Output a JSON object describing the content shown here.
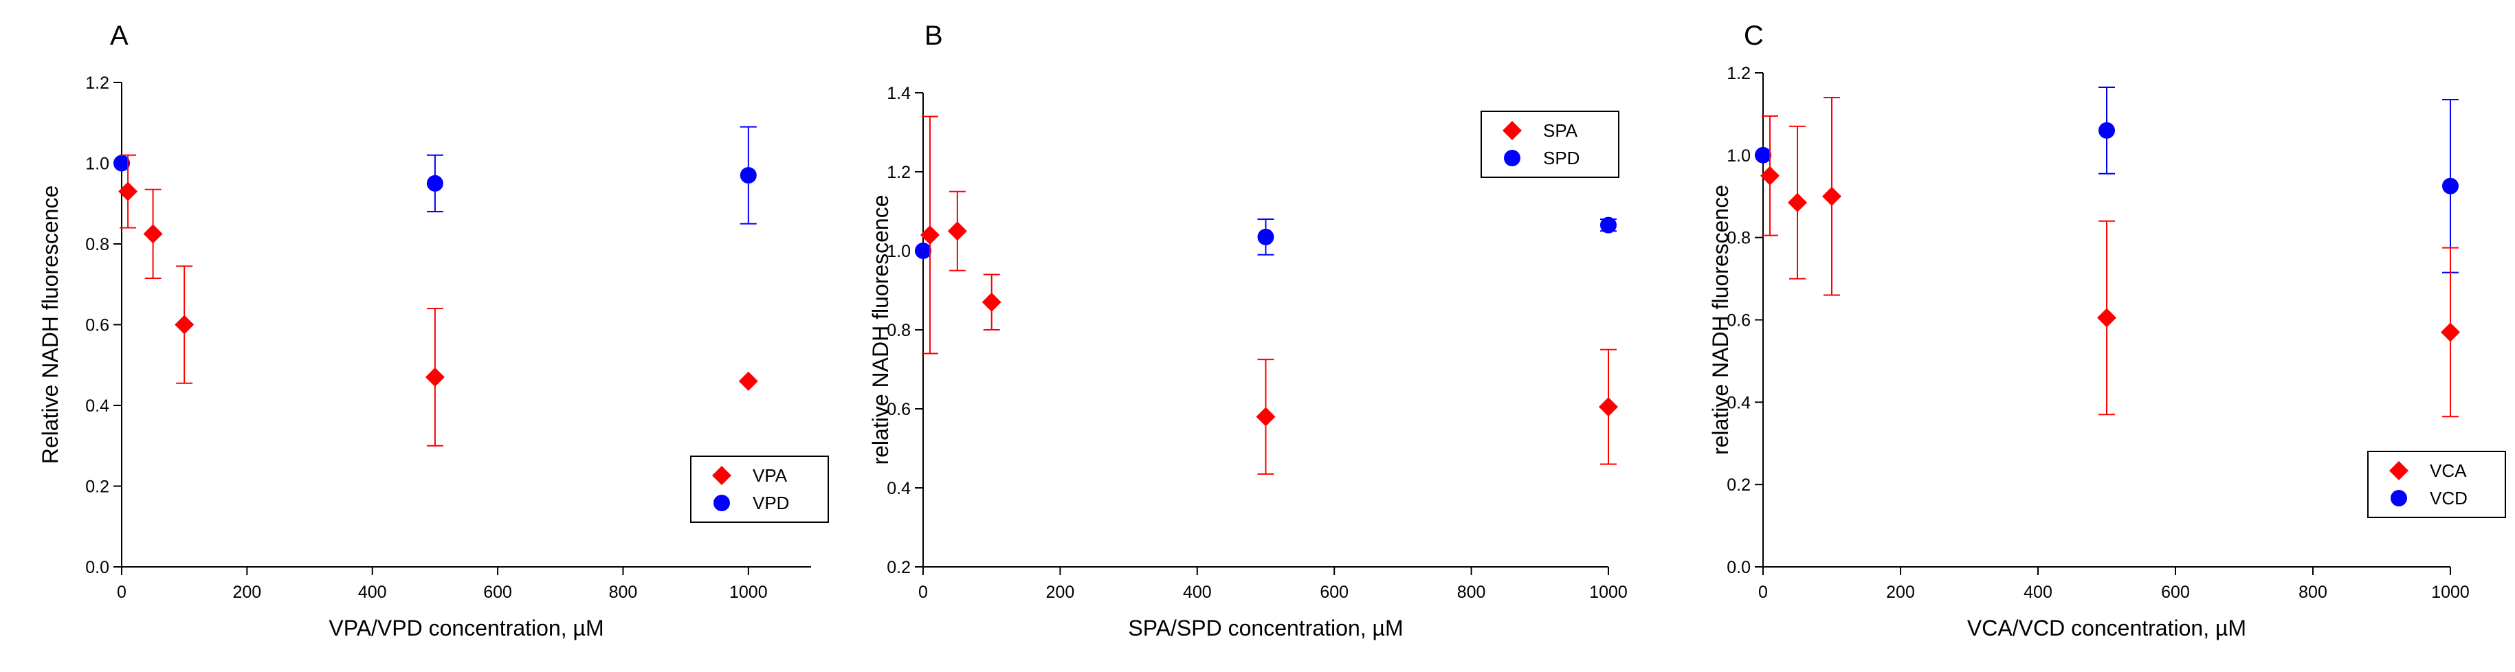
{
  "colors": {
    "red_series": "#ff0000",
    "blue_series": "#0000ff",
    "axis": "#000000"
  },
  "chart_data": [
    {
      "type": "scatter",
      "panel": "A",
      "xlabel": "VPA/VPD concentration, µM",
      "ylabel": "Relative NADH fluorescence",
      "xlim": [
        0,
        1100
      ],
      "ylim": [
        0.0,
        1.2
      ],
      "xticks": [
        0,
        200,
        400,
        600,
        800,
        1000
      ],
      "xtick_labels": [
        "0",
        "200",
        "400",
        "600",
        "800",
        "1000"
      ],
      "yticks": [
        0.0,
        0.2,
        0.4,
        0.6,
        0.8,
        1.0,
        1.2
      ],
      "ytick_labels": [
        "0.0",
        "0.2",
        "0.4",
        "0.6",
        "0.8",
        "1.0",
        "1.2"
      ],
      "legend_position": "bottom-right",
      "series": [
        {
          "name": "VPA",
          "marker": "diamond",
          "color": "#ff0000",
          "x": [
            10,
            50,
            100,
            500,
            1000
          ],
          "y": [
            0.93,
            0.825,
            0.6,
            0.47,
            0.46
          ],
          "err": [
            0.09,
            0.11,
            0.145,
            0.17,
            0.0
          ]
        },
        {
          "name": "VPD",
          "marker": "circle",
          "color": "#0000ff",
          "x": [
            0,
            500,
            1000
          ],
          "y": [
            1.0,
            0.95,
            0.97
          ],
          "err": [
            0.0,
            0.07,
            0.12
          ]
        }
      ]
    },
    {
      "type": "scatter",
      "panel": "B",
      "xlabel": "SPA/SPD concentration, µM",
      "ylabel": "relative NADH fluorescence",
      "xlim": [
        0,
        1000
      ],
      "ylim": [
        0.2,
        1.4
      ],
      "xticks": [
        0,
        200,
        400,
        600,
        800,
        1000
      ],
      "xtick_labels": [
        "0",
        "200",
        "400",
        "600",
        "800",
        "1000"
      ],
      "yticks": [
        0.2,
        0.4,
        0.6,
        0.8,
        1.0,
        1.2,
        1.4
      ],
      "ytick_labels": [
        "0.2",
        "0.4",
        "0.6",
        "0.8",
        "1.0",
        "1.2",
        "1.4"
      ],
      "legend_position": "top-right",
      "series": [
        {
          "name": "SPA",
          "marker": "diamond",
          "color": "#ff0000",
          "x": [
            10,
            50,
            100,
            500,
            1000
          ],
          "y": [
            1.04,
            1.05,
            0.87,
            0.58,
            0.605
          ],
          "err": [
            0.3,
            0.1,
            0.07,
            0.145,
            0.145
          ]
        },
        {
          "name": "SPD",
          "marker": "circle",
          "color": "#0000ff",
          "x": [
            0,
            500,
            1000
          ],
          "y": [
            1.0,
            1.035,
            1.065
          ],
          "err": [
            0.0,
            0.045,
            0.015
          ]
        }
      ]
    },
    {
      "type": "scatter",
      "panel": "C",
      "xlabel": "VCA/VCD concentration, µM",
      "ylabel": "relative NADH fluorescence",
      "xlim": [
        0,
        1000
      ],
      "ylim": [
        0.0,
        1.2
      ],
      "xticks": [
        0,
        200,
        400,
        600,
        800,
        1000
      ],
      "xtick_labels": [
        "0",
        "200",
        "400",
        "600",
        "800",
        "1000"
      ],
      "yticks": [
        0.0,
        0.2,
        0.4,
        0.6,
        0.8,
        1.0,
        1.2
      ],
      "ytick_labels": [
        "0.0",
        "0.2",
        "0.4",
        "0.6",
        "0.8",
        "1.0",
        "1.2"
      ],
      "legend_position": "bottom-right",
      "series": [
        {
          "name": "VCA",
          "marker": "diamond",
          "color": "#ff0000",
          "x": [
            10,
            50,
            100,
            500,
            1000
          ],
          "y": [
            0.95,
            0.885,
            0.9,
            0.605,
            0.57
          ],
          "err": [
            0.145,
            0.185,
            0.24,
            0.235,
            0.205
          ]
        },
        {
          "name": "VCD",
          "marker": "circle",
          "color": "#0000ff",
          "x": [
            0,
            500,
            1000
          ],
          "y": [
            1.0,
            1.06,
            0.925
          ],
          "err": [
            0.0,
            0.105,
            0.21
          ]
        }
      ]
    }
  ]
}
